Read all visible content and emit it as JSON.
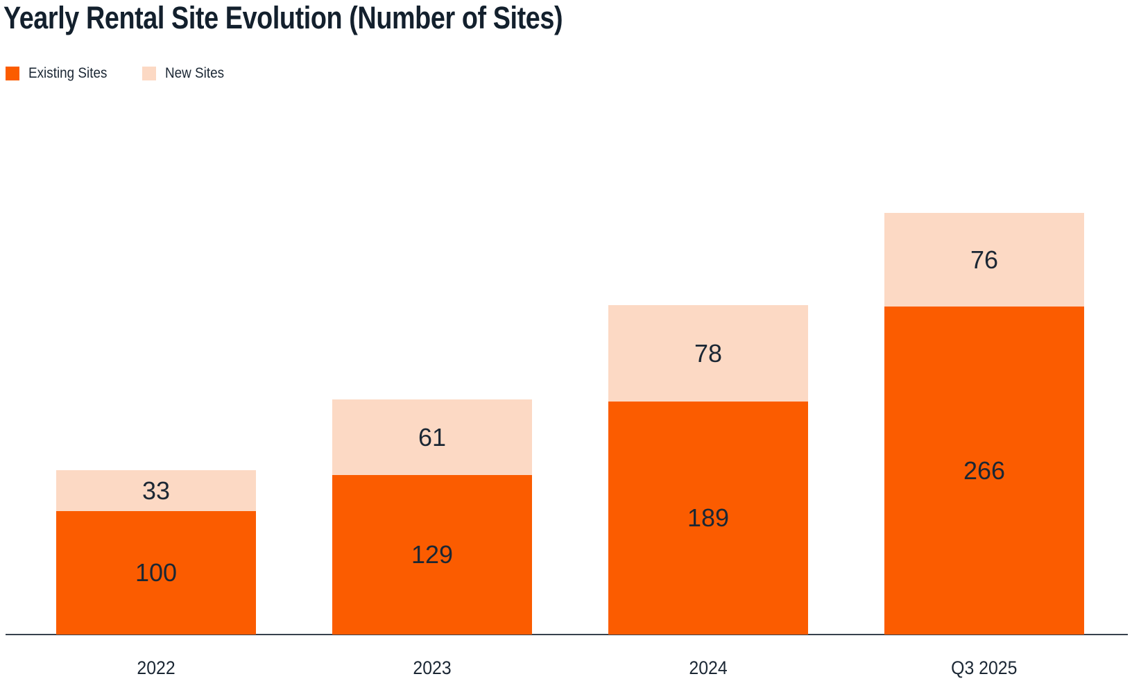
{
  "title": "Yearly Rental Site Evolution (Number of Sites)",
  "legend": {
    "items": [
      {
        "label": "Existing Sites",
        "color": "#FB5C00"
      },
      {
        "label": "New Sites",
        "color": "#FCD9C4"
      }
    ]
  },
  "colors": {
    "existing_sites": "#FB5C00",
    "new_sites": "#FCD9C4",
    "title_ink": "#13202D",
    "label_text": "#1B2734",
    "axis_line": "#37414D",
    "background": "#FFFFFF"
  },
  "chart_data": {
    "type": "bar",
    "stacked": true,
    "title": "Yearly Rental Site Evolution (Number of Sites)",
    "categories": [
      "2022",
      "2023",
      "2024",
      "Q3 2025"
    ],
    "series": [
      {
        "name": "Existing Sites",
        "color": "#FB5C00",
        "values": [
          100,
          129,
          189,
          266
        ]
      },
      {
        "name": "New Sites",
        "color": "#FCD9C4",
        "values": [
          33,
          61,
          78,
          76
        ]
      }
    ],
    "totals": [
      133,
      190,
      267,
      342
    ],
    "xlabel": "",
    "ylabel": "",
    "ylim": [
      0,
      350
    ],
    "grid": false,
    "y_axis_visible": false,
    "legend_position": "top-left",
    "value_labels": "inside-center"
  }
}
